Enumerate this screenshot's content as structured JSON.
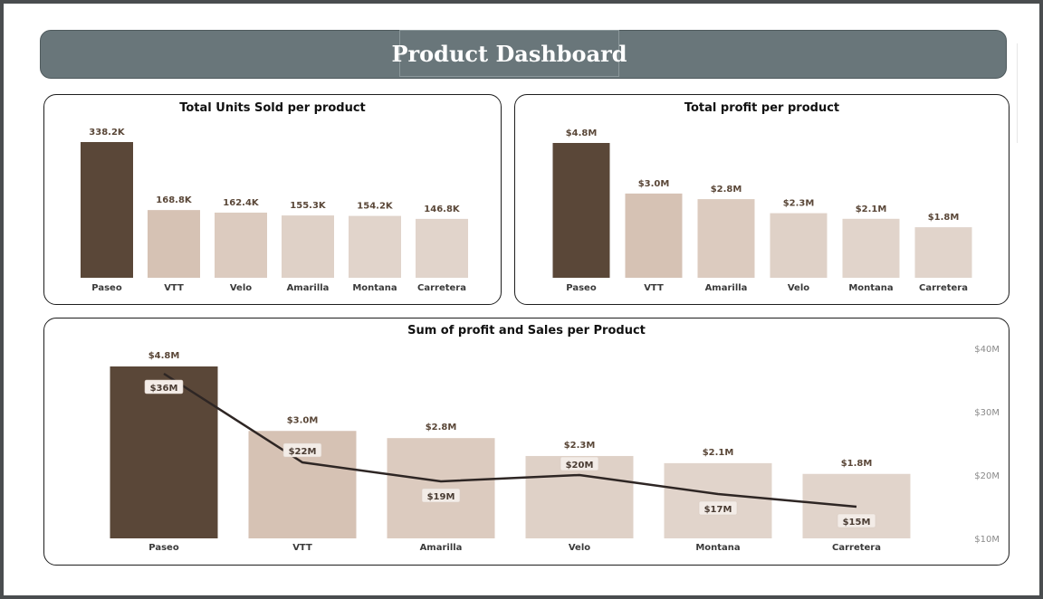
{
  "dashboard": {
    "title": "Product Dashboard"
  },
  "colors": {
    "dark_bar": "#5a4738",
    "light_bars": [
      "#d6c2b4",
      "#dccbbf",
      "#dfd1c7",
      "#e1d4cb"
    ],
    "line": "#2e2624",
    "header": "#69767a"
  },
  "chart_data": [
    {
      "type": "bar",
      "title": "Total Units Sold per product",
      "categories": [
        "Paseo",
        "VTT",
        "Velo",
        "Amarilla",
        "Montana",
        "Carretera"
      ],
      "values": [
        338.2,
        168.8,
        162.4,
        155.3,
        154.2,
        146.8
      ],
      "labels": [
        "338.2K",
        "168.8K",
        "162.4K",
        "155.3K",
        "154.2K",
        "146.8K"
      ],
      "ylim": [
        0,
        338.2
      ]
    },
    {
      "type": "bar",
      "title": "Total profit per product",
      "categories": [
        "Paseo",
        "VTT",
        "Amarilla",
        "Velo",
        "Montana",
        "Carretera"
      ],
      "values": [
        4.8,
        3.0,
        2.8,
        2.3,
        2.1,
        1.8
      ],
      "labels": [
        "$4.8M",
        "$3.0M",
        "$2.8M",
        "$2.3M",
        "$2.1M",
        "$1.8M"
      ],
      "ylim": [
        0,
        4.8
      ]
    },
    {
      "type": "bar",
      "title": "Sum of profit and Sales per Product",
      "categories": [
        "Paseo",
        "VTT",
        "Amarilla",
        "Velo",
        "Montana",
        "Carretera"
      ],
      "series": [
        {
          "values": [
            4.8,
            3.0,
            2.8,
            2.3,
            2.1,
            1.8
          ],
          "labels": [
            "$4.8M",
            "$3.0M",
            "$2.8M",
            "$2.3M",
            "$2.1M",
            "$1.8M"
          ]
        },
        {
          "type": "line",
          "values": [
            36,
            22,
            19,
            20,
            17,
            15
          ],
          "labels": [
            "$36M",
            "$22M",
            "$19M",
            "$20M",
            "$17M",
            "$15M"
          ]
        }
      ],
      "bar_ylim": [
        0,
        4.8
      ],
      "line_axis": {
        "ticks": [
          10,
          20,
          30,
          40
        ],
        "tick_labels": [
          "$10M",
          "$20M",
          "$30M",
          "$40M"
        ],
        "range": [
          10,
          40
        ]
      }
    }
  ]
}
